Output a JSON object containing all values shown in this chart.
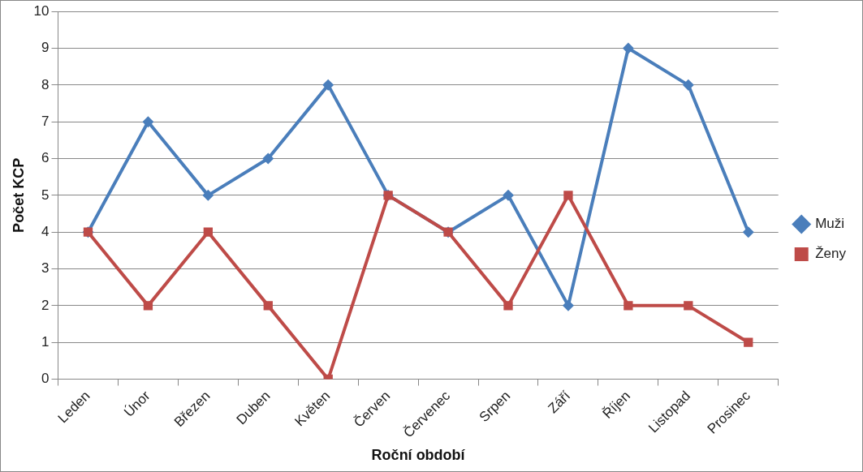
{
  "chart_data": {
    "type": "line",
    "xlabel": "Roční období",
    "ylabel": "Počet KCP",
    "categories": [
      "Leden",
      "Únor",
      "Březen",
      "Duben",
      "Květen",
      "Červen",
      "Červenec",
      "Srpen",
      "Září",
      "Říjen",
      "Listopad",
      "Prosinec"
    ],
    "series": [
      {
        "name": "Muži",
        "color": "#4a7ebb",
        "marker": "diamond",
        "values": [
          4,
          7,
          5,
          6,
          8,
          5,
          4,
          5,
          2,
          9,
          8,
          4
        ]
      },
      {
        "name": "Ženy",
        "color": "#be4b48",
        "marker": "square",
        "values": [
          4,
          2,
          4,
          2,
          0,
          5,
          4,
          2,
          5,
          2,
          2,
          1
        ]
      }
    ],
    "ylim": [
      0,
      10
    ],
    "yticks": [
      0,
      1,
      2,
      3,
      4,
      5,
      6,
      7,
      8,
      9,
      10
    ],
    "grid": "y",
    "legend": "right",
    "line_style": "solid"
  }
}
